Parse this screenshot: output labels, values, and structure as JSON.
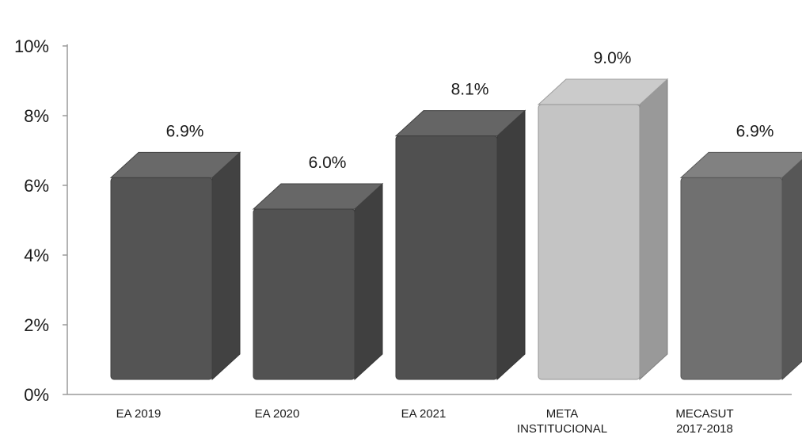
{
  "chart_data": {
    "type": "bar",
    "title": "",
    "xlabel": "",
    "ylabel": "",
    "ylim": [
      0,
      10
    ],
    "y_tick_values": [
      0,
      2,
      4,
      6,
      8,
      10
    ],
    "y_tick_labels": [
      "0%",
      "2%",
      "4%",
      "6%",
      "8%",
      "10%"
    ],
    "grid": false,
    "legend": "none",
    "style": "3d-bar",
    "categories": [
      [
        "EA 2019"
      ],
      [
        "EA 2020"
      ],
      [
        "EA 2021"
      ],
      [
        "META",
        "INSTITUCIONAL"
      ],
      [
        "MECASUT",
        "2017-2018"
      ]
    ],
    "values": [
      6.9,
      6.0,
      8.1,
      9.0,
      6.9
    ],
    "value_labels": [
      "6.9%",
      "6.0%",
      "8.1%",
      "9.0%",
      "6.9%"
    ],
    "bar_colors": [
      "#545454",
      "#525252",
      "#505050",
      "#c4c4c4",
      "#707070"
    ]
  }
}
